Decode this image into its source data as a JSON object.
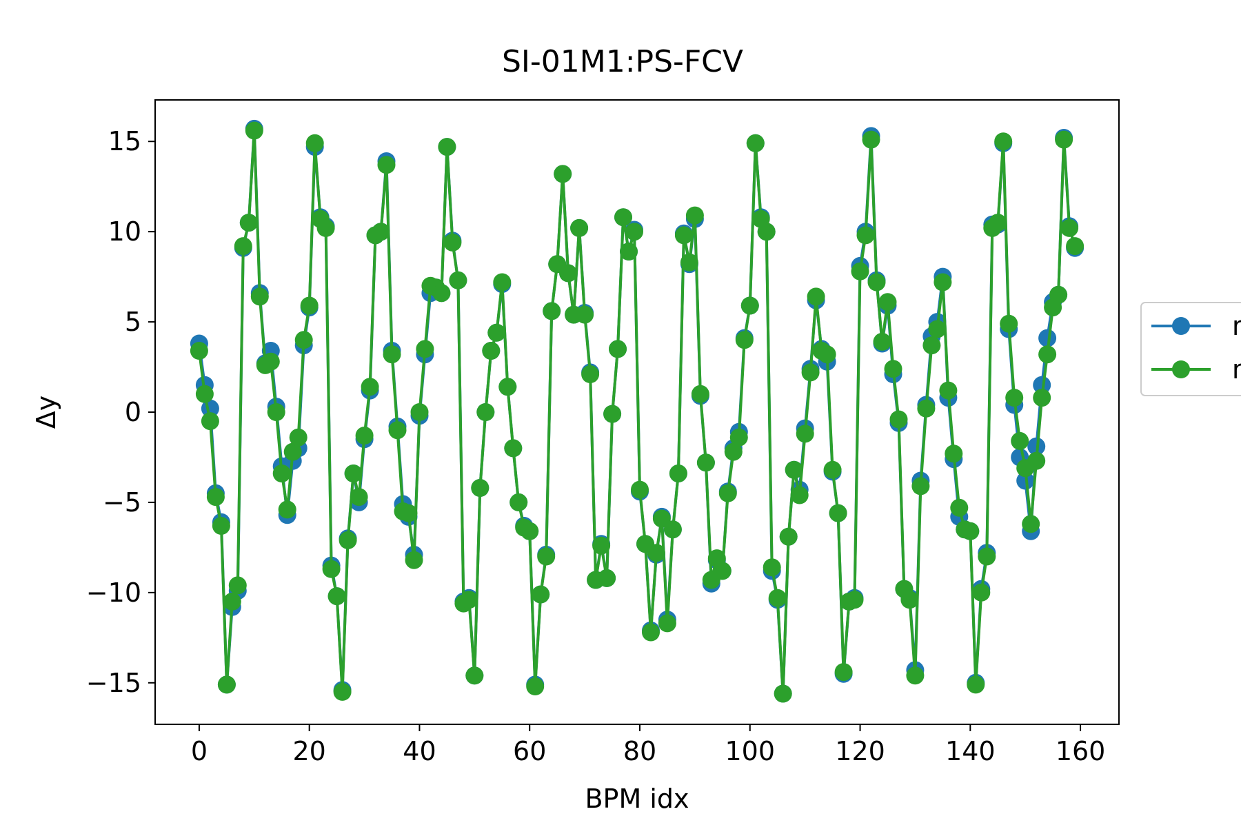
{
  "chart_data": {
    "type": "line",
    "title": "SI-01M1:PS-FCV",
    "xlabel": "BPM idx",
    "ylabel": "Δy",
    "xlim": [
      -8,
      167
    ],
    "ylim": [
      -17.3,
      17.3
    ],
    "xticks": [
      0,
      20,
      40,
      60,
      80,
      100,
      120,
      140,
      160
    ],
    "xtick_labels": [
      "0",
      "20",
      "40",
      "60",
      "80",
      "100",
      "120",
      "140",
      "160"
    ],
    "yticks": [
      -15,
      -10,
      -5,
      0,
      5,
      10,
      15
    ],
    "ytick_labels": [
      "−15",
      "−10",
      "−5",
      "0",
      "5",
      "10",
      "15"
    ],
    "grid": false,
    "legend": {
      "placement": "outside-right"
    },
    "x": [
      0,
      1,
      2,
      3,
      4,
      5,
      6,
      7,
      8,
      9,
      10,
      11,
      12,
      13,
      14,
      15,
      16,
      17,
      18,
      19,
      20,
      21,
      22,
      23,
      24,
      25,
      26,
      27,
      28,
      29,
      30,
      31,
      32,
      33,
      34,
      35,
      36,
      37,
      38,
      39,
      40,
      41,
      42,
      43,
      44,
      45,
      46,
      47,
      48,
      49,
      50,
      51,
      52,
      53,
      54,
      55,
      56,
      57,
      58,
      59,
      60,
      61,
      62,
      63,
      64,
      65,
      66,
      67,
      68,
      69,
      70,
      71,
      72,
      73,
      74,
      75,
      76,
      77,
      78,
      79,
      80,
      81,
      82,
      83,
      84,
      85,
      86,
      87,
      88,
      89,
      90,
      91,
      92,
      93,
      94,
      95,
      96,
      97,
      98,
      99,
      100,
      101,
      102,
      103,
      104,
      105,
      106,
      107,
      108,
      109,
      110,
      111,
      112,
      113,
      114,
      115,
      116,
      117,
      118,
      119,
      120,
      121,
      122,
      123,
      124,
      125,
      126,
      127,
      128,
      129,
      130,
      131,
      132,
      133,
      134,
      135,
      136,
      137,
      138,
      139,
      140,
      141,
      142,
      143,
      144,
      145,
      146,
      147,
      148,
      149,
      150,
      151,
      152,
      153,
      154,
      155,
      156,
      157,
      158,
      159
    ],
    "series": [
      {
        "name": "m",
        "color": "#1f77b4",
        "values": [
          3.8,
          1.5,
          0.2,
          -4.5,
          -6.1,
          -15.1,
          -10.8,
          -9.9,
          9.1,
          10.5,
          15.7,
          6.6,
          2.7,
          3.4,
          0.3,
          -3.0,
          -5.7,
          -2.7,
          -2.0,
          3.7,
          5.8,
          14.7,
          10.8,
          10.3,
          -8.5,
          -10.2,
          -15.4,
          -7.0,
          -3.4,
          -5.0,
          -1.5,
          1.2,
          9.8,
          10.0,
          13.9,
          3.4,
          -0.8,
          -5.1,
          -5.8,
          -7.9,
          -0.2,
          3.2,
          6.6,
          6.9,
          6.6,
          14.7,
          9.5,
          7.3,
          -10.5,
          -10.3,
          -14.6,
          -4.2,
          0.0,
          3.4,
          4.4,
          7.1,
          1.4,
          -2.0,
          -5.0,
          -6.3,
          -6.6,
          -15.1,
          -10.1,
          -7.9,
          5.6,
          8.2,
          13.2,
          7.7,
          5.4,
          10.2,
          5.5,
          2.2,
          -9.3,
          -7.3,
          -9.2,
          -0.1,
          3.5,
          10.8,
          8.9,
          10.1,
          -4.4,
          -7.3,
          -12.1,
          -7.9,
          -5.8,
          -11.5,
          -6.5,
          -3.4,
          9.9,
          8.2,
          10.7,
          0.9,
          -2.8,
          -9.5,
          -8.2,
          -8.8,
          -4.4,
          -2.0,
          -1.1,
          4.1,
          5.9,
          14.9,
          10.8,
          10.0,
          -8.8,
          -10.4,
          -15.6,
          -6.9,
          -3.2,
          -4.3,
          -0.9,
          2.4,
          6.2,
          3.5,
          2.8,
          -3.3,
          -5.6,
          -14.5,
          -10.5,
          -10.3,
          8.1,
          10.0,
          15.3,
          7.3,
          3.8,
          5.9,
          2.1,
          -0.6,
          -9.8,
          -10.3,
          -14.3,
          -3.8,
          0.4,
          4.2,
          5.0,
          7.5,
          0.8,
          -2.6,
          -5.8,
          -6.5,
          -6.6,
          -15.0,
          -9.8,
          -7.8,
          10.4,
          10.4,
          14.9,
          4.6,
          0.4,
          -2.5,
          -3.8,
          -6.6,
          -1.9,
          1.5,
          4.1,
          6.1,
          6.5,
          15.2,
          10.3,
          9.1
        ]
      },
      {
        "name": "m",
        "color": "#2ca02c",
        "values": [
          3.4,
          1.0,
          -0.5,
          -4.7,
          -6.3,
          -15.1,
          -10.5,
          -9.6,
          9.2,
          10.5,
          15.6,
          6.4,
          2.6,
          2.8,
          0.0,
          -3.4,
          -5.4,
          -2.2,
          -1.4,
          4.0,
          5.9,
          14.9,
          10.7,
          10.2,
          -8.7,
          -10.2,
          -15.5,
          -7.1,
          -3.4,
          -4.7,
          -1.3,
          1.4,
          9.8,
          10.0,
          13.7,
          3.2,
          -1.0,
          -5.5,
          -5.6,
          -8.2,
          0.0,
          3.5,
          7.0,
          6.9,
          6.6,
          14.7,
          9.4,
          7.3,
          -10.6,
          -10.4,
          -14.6,
          -4.2,
          0.0,
          3.4,
          4.4,
          7.2,
          1.4,
          -2.0,
          -5.0,
          -6.4,
          -6.6,
          -15.2,
          -10.1,
          -8.0,
          5.6,
          8.2,
          13.2,
          7.7,
          5.4,
          10.2,
          5.4,
          2.1,
          -9.3,
          -7.4,
          -9.2,
          -0.1,
          3.5,
          10.8,
          8.9,
          10.0,
          -4.3,
          -7.3,
          -12.2,
          -7.8,
          -5.9,
          -11.7,
          -6.5,
          -3.4,
          9.8,
          8.3,
          10.9,
          1.0,
          -2.8,
          -9.3,
          -8.1,
          -8.8,
          -4.5,
          -2.2,
          -1.4,
          4.0,
          5.9,
          14.9,
          10.7,
          10.0,
          -8.6,
          -10.3,
          -15.6,
          -6.9,
          -3.2,
          -4.6,
          -1.2,
          2.2,
          6.4,
          3.4,
          3.2,
          -3.2,
          -5.6,
          -14.4,
          -10.5,
          -10.4,
          7.8,
          9.8,
          15.1,
          7.2,
          3.9,
          6.1,
          2.4,
          -0.4,
          -9.8,
          -10.4,
          -14.6,
          -4.1,
          0.2,
          3.7,
          4.6,
          7.2,
          1.2,
          -2.3,
          -5.3,
          -6.5,
          -6.6,
          -15.1,
          -10.0,
          -8.0,
          10.2,
          10.5,
          15.0,
          4.9,
          0.8,
          -1.6,
          -3.1,
          -6.2,
          -2.7,
          0.8,
          3.2,
          5.8,
          6.5,
          15.1,
          10.2,
          9.2
        ]
      }
    ]
  }
}
